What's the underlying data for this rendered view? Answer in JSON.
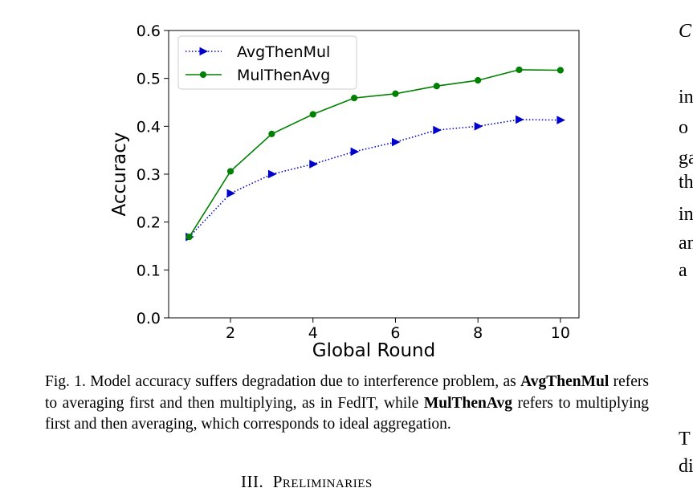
{
  "chart_data": {
    "type": "line",
    "title": "",
    "xlabel": "Global Round",
    "ylabel": "Accuracy",
    "xlim": [
      0.5,
      10.45
    ],
    "ylim": [
      0.0,
      0.6
    ],
    "xticks": [
      2,
      4,
      6,
      8,
      10
    ],
    "yticks": [
      0.0,
      0.1,
      0.2,
      0.3,
      0.4,
      0.5,
      0.6
    ],
    "ytick_labels": [
      "0.0",
      "0.1",
      "0.2",
      "0.3",
      "0.4",
      "0.5",
      "0.6"
    ],
    "xtick_labels": [
      "2",
      "4",
      "6",
      "8",
      "10"
    ],
    "grid": false,
    "legend_position": "top-left",
    "series": [
      {
        "name": "AvgThenMul",
        "color": "#0000cc",
        "line_style": "dotted",
        "marker": "triangle-right",
        "x": [
          1,
          2,
          3,
          4,
          5,
          6,
          7,
          8,
          9,
          10
        ],
        "y": [
          0.169,
          0.26,
          0.3,
          0.321,
          0.347,
          0.367,
          0.392,
          0.4,
          0.414,
          0.413
        ]
      },
      {
        "name": "MulThenAvg",
        "color": "#008000",
        "line_style": "solid",
        "marker": "circle",
        "x": [
          1,
          2,
          3,
          4,
          5,
          6,
          7,
          8,
          9,
          10
        ],
        "y": [
          0.169,
          0.306,
          0.384,
          0.425,
          0.459,
          0.468,
          0.484,
          0.496,
          0.518,
          0.517
        ]
      }
    ]
  },
  "caption": {
    "prefix": "Fig. 1.  Model accuracy suffers degradation due to interference problem, as ",
    "term1": "AvgThenMul",
    "mid1": " refers to averaging first and then multiplying, as in FedIT, while ",
    "term2": "MulThenAvg",
    "mid2": " refers to multiplying first and then averaging, which corresponds to ideal aggregation."
  },
  "section_heading": {
    "number": "III.",
    "title": "Preliminaries"
  },
  "right_column": {
    "lines": [
      "C",
      "in",
      "o",
      "ga",
      "th",
      "in",
      "an",
      "a",
      "T",
      "di"
    ]
  }
}
